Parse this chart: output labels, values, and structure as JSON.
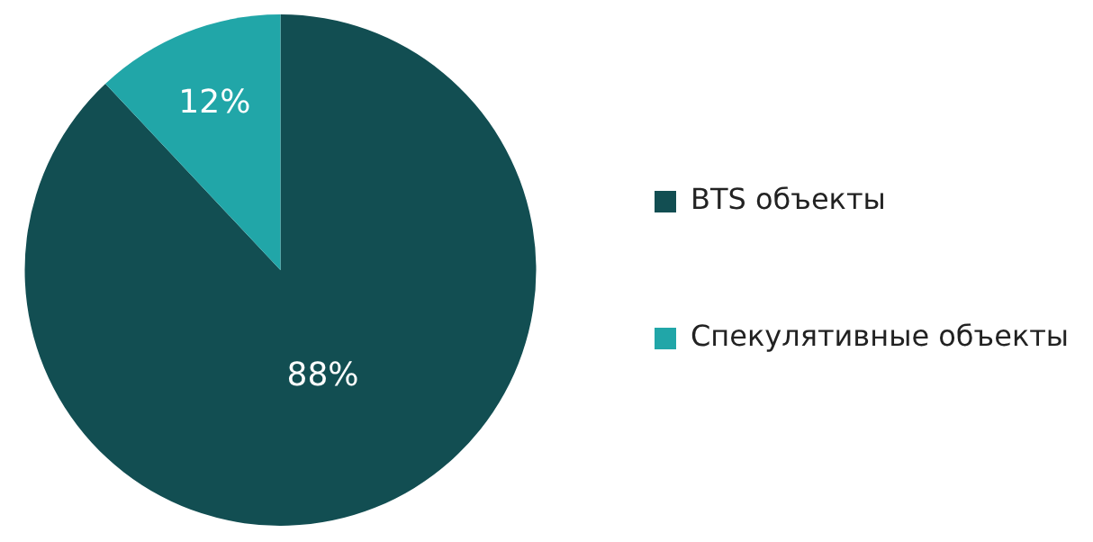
{
  "chart_data": {
    "type": "pie",
    "categories": [
      "BTS объекты",
      "Спекулятивные объекты"
    ],
    "values": [
      88,
      12
    ],
    "value_labels": [
      "88%",
      "12%"
    ],
    "colors": [
      "#124e52",
      "#21a6a8"
    ],
    "legend": "right"
  }
}
